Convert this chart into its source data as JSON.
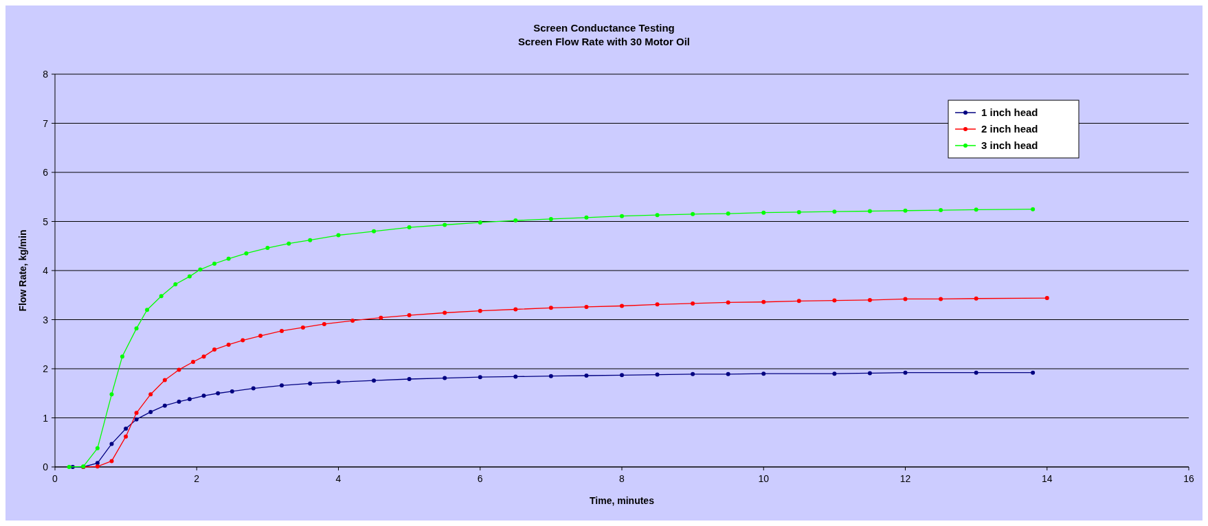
{
  "chart_data": {
    "type": "line",
    "title": "Screen Conductance Testing",
    "subtitle": "Screen Flow Rate with 30 Motor Oil",
    "xlabel": "Time, minutes",
    "ylabel": "Flow Rate, kg/min",
    "xlim": [
      0,
      16
    ],
    "xticks": [
      0,
      2,
      4,
      6,
      8,
      10,
      12,
      14,
      16
    ],
    "ylim": [
      0,
      8
    ],
    "yticks": [
      0,
      1,
      2,
      3,
      4,
      5,
      6,
      7,
      8
    ],
    "grid": "y",
    "legend": "top right",
    "marker": "circle",
    "line_style": "solid",
    "series": [
      {
        "name": "1 inch head",
        "color": "#000080",
        "x": [
          0.25,
          0.4,
          0.6,
          0.8,
          1.0,
          1.15,
          1.35,
          1.55,
          1.75,
          1.9,
          2.1,
          2.3,
          2.5,
          2.8,
          3.2,
          3.6,
          4.0,
          4.5,
          5.0,
          5.5,
          6.0,
          6.5,
          7.0,
          7.5,
          8.0,
          8.5,
          9.0,
          9.5,
          10,
          11,
          11.5,
          12,
          13,
          13.8
        ],
        "values": [
          0,
          0,
          0.08,
          0.47,
          0.78,
          0.97,
          1.12,
          1.25,
          1.33,
          1.38,
          1.45,
          1.5,
          1.54,
          1.6,
          1.66,
          1.7,
          1.73,
          1.76,
          1.79,
          1.81,
          1.83,
          1.84,
          1.85,
          1.86,
          1.87,
          1.88,
          1.89,
          1.89,
          1.9,
          1.9,
          1.91,
          1.92,
          1.92,
          1.92
        ]
      },
      {
        "name": "2 inch head",
        "color": "#ff0000",
        "x": [
          0.4,
          0.6,
          0.8,
          1.0,
          1.15,
          1.35,
          1.55,
          1.75,
          1.95,
          2.1,
          2.25,
          2.45,
          2.65,
          2.9,
          3.2,
          3.5,
          3.8,
          4.2,
          4.6,
          5.0,
          5.5,
          6.0,
          6.5,
          7.0,
          7.5,
          8.0,
          8.5,
          9.0,
          9.5,
          10,
          10.5,
          11,
          11.5,
          12,
          12.5,
          13,
          14
        ],
        "values": [
          0,
          0.01,
          0.12,
          0.62,
          1.1,
          1.48,
          1.77,
          1.98,
          2.14,
          2.25,
          2.39,
          2.49,
          2.58,
          2.67,
          2.77,
          2.84,
          2.91,
          2.98,
          3.04,
          3.09,
          3.14,
          3.18,
          3.21,
          3.24,
          3.26,
          3.28,
          3.31,
          3.33,
          3.35,
          3.36,
          3.38,
          3.39,
          3.4,
          3.42,
          3.42,
          3.43,
          3.44
        ]
      },
      {
        "name": "3 inch head",
        "color": "#00ff00",
        "x": [
          0.2,
          0.4,
          0.6,
          0.8,
          0.95,
          1.15,
          1.3,
          1.5,
          1.7,
          1.9,
          2.05,
          2.25,
          2.45,
          2.7,
          3.0,
          3.3,
          3.6,
          4.0,
          4.5,
          5.0,
          5.5,
          6.0,
          6.5,
          7.0,
          7.5,
          8.0,
          8.5,
          9.0,
          9.5,
          10,
          10.5,
          11,
          11.5,
          12,
          12.5,
          13,
          13.8
        ],
        "values": [
          0,
          0.01,
          0.38,
          1.48,
          2.25,
          2.82,
          3.2,
          3.48,
          3.72,
          3.88,
          4.02,
          4.14,
          4.24,
          4.35,
          4.46,
          4.55,
          4.62,
          4.72,
          4.8,
          4.88,
          4.93,
          4.98,
          5.02,
          5.05,
          5.08,
          5.11,
          5.13,
          5.15,
          5.16,
          5.18,
          5.19,
          5.2,
          5.21,
          5.22,
          5.23,
          5.24,
          5.25
        ]
      }
    ]
  }
}
